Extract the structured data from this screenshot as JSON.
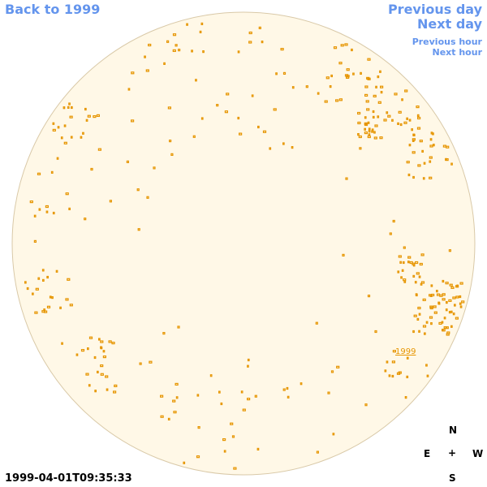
{
  "nav": {
    "back_label": "Back to 1999",
    "prev_day_label": "Previous day",
    "next_day_label": "Next day",
    "prev_hour_label": "Previous hour",
    "next_hour_label": "Next hour"
  },
  "timestamp": "1999-04-01T09:35:33",
  "compass": {
    "north": "N",
    "south": "S",
    "east": "E",
    "west": "W",
    "center": "+"
  },
  "region_label": "1999",
  "colors": {
    "link": "#6495ed",
    "disk_fill": "#fff8e7",
    "disk_stroke": "#d9c9a8",
    "feature": "#e69500"
  }
}
